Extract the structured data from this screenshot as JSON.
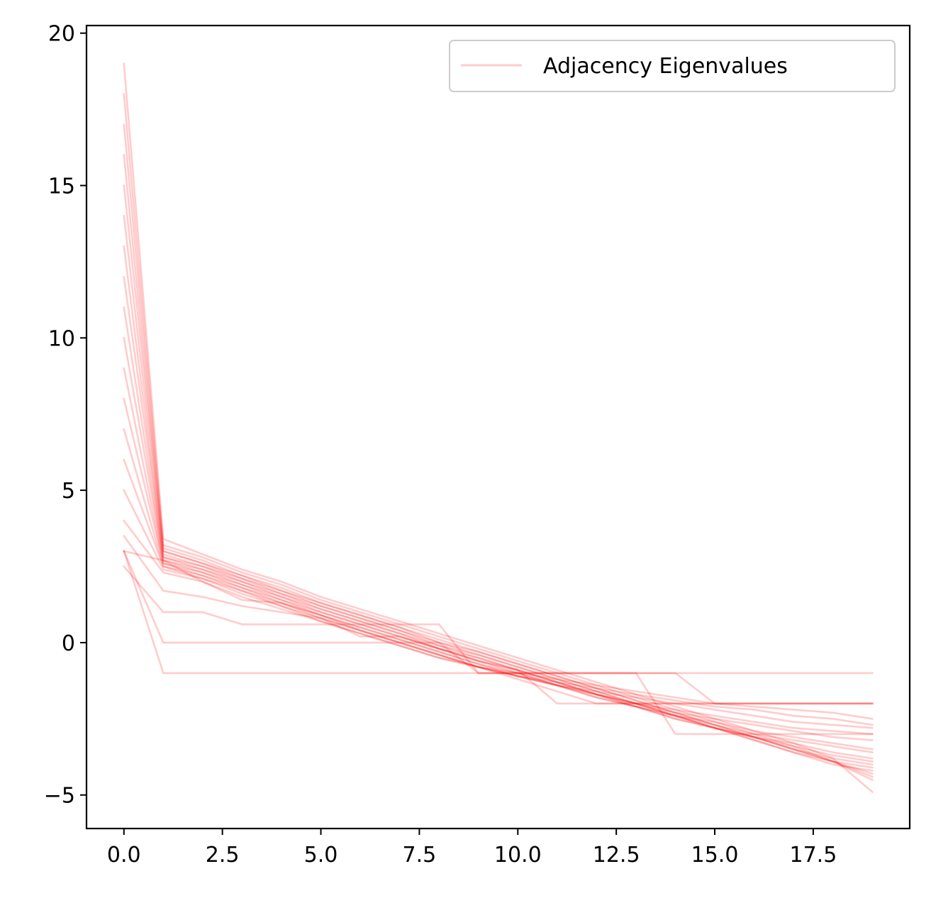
{
  "chart_data": {
    "type": "line",
    "title": "",
    "xlabel": "",
    "ylabel": "",
    "xlim": [
      -0.95,
      19.95
    ],
    "ylim": [
      -6.1,
      20.25
    ],
    "x_ticks": [
      0.0,
      2.5,
      5.0,
      7.5,
      10.0,
      12.5,
      15.0,
      17.5
    ],
    "x_tick_labels": [
      "0.0",
      "2.5",
      "5.0",
      "7.5",
      "10.0",
      "12.5",
      "15.0",
      "17.5"
    ],
    "y_ticks": [
      -5,
      0,
      5,
      10,
      15,
      20
    ],
    "y_tick_labels": [
      "−5",
      "0",
      "5",
      "10",
      "15",
      "20"
    ],
    "grid": false,
    "legend": {
      "position": "top-right",
      "entries": [
        "Adjacency Eigenvalues"
      ]
    },
    "line_color": "#ff0000",
    "line_alpha": 0.2,
    "x": [
      0,
      1,
      2,
      3,
      4,
      5,
      6,
      7,
      8,
      9,
      10,
      11,
      12,
      13,
      14,
      15,
      16,
      17,
      18,
      19
    ],
    "series": [
      {
        "name": "Adjacency Eigenvalues",
        "values": [
          19.0,
          3.4,
          2.9,
          2.4,
          2.0,
          1.5,
          1.1,
          0.7,
          0.3,
          -0.1,
          -0.5,
          -0.9,
          -1.3,
          -1.7,
          -2.1,
          -2.5,
          -2.9,
          -3.3,
          -3.8,
          -4.9
        ]
      },
      {
        "values": [
          18.0,
          3.2,
          2.8,
          2.3,
          1.9,
          1.4,
          1.0,
          0.6,
          0.2,
          -0.2,
          -0.6,
          -1.0,
          -1.4,
          -1.8,
          -2.2,
          -2.6,
          -3.0,
          -3.4,
          -3.9,
          -4.5
        ]
      },
      {
        "values": [
          17.0,
          3.1,
          2.7,
          2.2,
          1.8,
          1.3,
          0.9,
          0.5,
          0.1,
          -0.3,
          -0.7,
          -1.1,
          -1.5,
          -1.9,
          -2.3,
          -2.7,
          -3.1,
          -3.5,
          -3.9,
          -4.4
        ]
      },
      {
        "values": [
          16.0,
          3.0,
          2.6,
          2.2,
          1.7,
          1.3,
          0.9,
          0.5,
          0.0,
          -0.3,
          -0.7,
          -1.1,
          -1.5,
          -1.9,
          -2.3,
          -2.7,
          -3.1,
          -3.5,
          -3.9,
          -4.3
        ]
      },
      {
        "values": [
          15.0,
          3.0,
          2.6,
          2.1,
          1.7,
          1.2,
          0.8,
          0.4,
          0.0,
          -0.4,
          -0.8,
          -1.2,
          -1.6,
          -2.0,
          -2.4,
          -2.8,
          -3.2,
          -3.6,
          -4.0,
          -4.2
        ]
      },
      {
        "values": [
          14.0,
          2.9,
          2.5,
          2.1,
          1.6,
          1.2,
          0.8,
          0.4,
          -0.1,
          -0.4,
          -0.8,
          -1.2,
          -1.6,
          -2.0,
          -2.4,
          -2.8,
          -3.2,
          -3.6,
          -3.9,
          -4.1
        ]
      },
      {
        "values": [
          13.0,
          2.8,
          2.5,
          2.0,
          1.6,
          1.1,
          0.7,
          0.3,
          -0.1,
          -0.5,
          -0.9,
          -1.3,
          -1.7,
          -2.0,
          -2.4,
          -2.8,
          -3.1,
          -3.5,
          -3.8,
          -4.0
        ]
      },
      {
        "values": [
          12.0,
          2.8,
          2.4,
          2.0,
          1.5,
          1.1,
          0.7,
          0.3,
          -0.2,
          -0.5,
          -0.9,
          -1.3,
          -1.7,
          -2.1,
          -2.5,
          -2.8,
          -3.1,
          -3.4,
          -3.7,
          -3.9
        ]
      },
      {
        "values": [
          11.0,
          2.7,
          2.4,
          1.9,
          1.5,
          1.0,
          0.6,
          0.2,
          -0.2,
          -0.6,
          -0.9,
          -1.3,
          -1.7,
          -2.1,
          -2.5,
          -2.8,
          -3.1,
          -3.3,
          -3.6,
          -3.8
        ]
      },
      {
        "values": [
          10.0,
          2.7,
          2.3,
          1.9,
          1.4,
          1.0,
          0.6,
          0.2,
          -0.2,
          -0.6,
          -1.0,
          -1.4,
          -1.8,
          -2.1,
          -2.4,
          -2.7,
          -3.0,
          -3.2,
          -3.4,
          -3.6
        ]
      },
      {
        "values": [
          9.0,
          2.6,
          2.3,
          1.8,
          1.4,
          0.9,
          0.5,
          0.1,
          -0.3,
          -0.7,
          -1.0,
          -1.4,
          -1.8,
          -2.1,
          -2.4,
          -2.6,
          -2.9,
          -3.1,
          -3.3,
          -3.5
        ]
      },
      {
        "values": [
          8.0,
          2.6,
          2.2,
          1.8,
          1.3,
          0.9,
          0.5,
          0.1,
          -0.3,
          -0.7,
          -1.1,
          -1.4,
          -1.7,
          -2.0,
          -2.3,
          -2.5,
          -2.7,
          -2.9,
          -3.1,
          -3.2
        ]
      },
      {
        "values": [
          7.0,
          2.5,
          2.2,
          1.7,
          1.3,
          0.8,
          0.4,
          0.0,
          -0.4,
          -0.8,
          -1.1,
          -1.4,
          -1.7,
          -2.0,
          -2.2,
          -2.4,
          -2.6,
          -2.8,
          -2.9,
          -3.0
        ]
      },
      {
        "values": [
          6.0,
          2.5,
          2.1,
          1.7,
          1.2,
          0.8,
          0.4,
          0.0,
          -0.4,
          -0.8,
          -1.1,
          -1.4,
          -1.6,
          -1.8,
          -2.0,
          -2.2,
          -2.4,
          -2.6,
          -2.7,
          -2.8
        ]
      },
      {
        "values": [
          5.0,
          2.4,
          2.1,
          1.6,
          1.2,
          0.7,
          0.3,
          -0.1,
          -0.5,
          -0.8,
          -1.1,
          -1.3,
          -1.5,
          -1.7,
          -1.9,
          -2.1,
          -2.2,
          -2.4,
          -2.5,
          -2.7
        ]
      },
      {
        "values": [
          4.0,
          2.3,
          2.0,
          1.5,
          1.1,
          0.7,
          0.3,
          -0.1,
          -0.5,
          -0.8,
          -1.0,
          -1.2,
          -1.4,
          -1.6,
          -1.8,
          -2.0,
          -2.1,
          -2.2,
          -2.3,
          -2.5
        ]
      },
      {
        "values": [
          3.0,
          2.7,
          2.0,
          1.4,
          1.3,
          0.9,
          0.4,
          0.0,
          -0.4,
          -0.8,
          -1.2,
          -1.6,
          -2.0,
          -2.0,
          -2.0,
          -2.0,
          -2.0,
          -2.0,
          -2.0,
          -2.0
        ]
      },
      {
        "values": [
          3.5,
          1.7,
          1.5,
          1.2,
          1.0,
          0.8,
          0.2,
          0.2,
          -0.2,
          -0.6,
          -0.9,
          -2.0,
          -2.0,
          -2.0,
          -2.0,
          -2.0,
          -2.0,
          -2.0,
          -2.0,
          -2.0
        ]
      },
      {
        "values": [
          2.5,
          1.0,
          1.0,
          0.6,
          0.6,
          0.6,
          0.6,
          0.6,
          0.6,
          -1.0,
          -1.0,
          -1.0,
          -1.0,
          -1.0,
          -1.0,
          -2.0,
          -2.0,
          -2.0,
          -2.0,
          -2.0
        ]
      },
      {
        "values": [
          3.0,
          0.0,
          0.0,
          0.0,
          0.0,
          0.0,
          0.0,
          0.0,
          0.0,
          -1.0,
          -1.0,
          -1.0,
          -1.0,
          -1.0,
          -3.0,
          -3.0,
          -3.0,
          -3.0,
          -3.0,
          -3.0
        ]
      },
      {
        "values": [
          3.0,
          -1.0,
          -1.0,
          -1.0,
          -1.0,
          -1.0,
          -1.0,
          -1.0,
          -1.0,
          -1.0,
          -1.0,
          -1.0,
          -1.0,
          -1.0,
          -1.0,
          -1.0,
          -1.0,
          -1.0,
          -1.0,
          -1.0
        ]
      }
    ]
  }
}
